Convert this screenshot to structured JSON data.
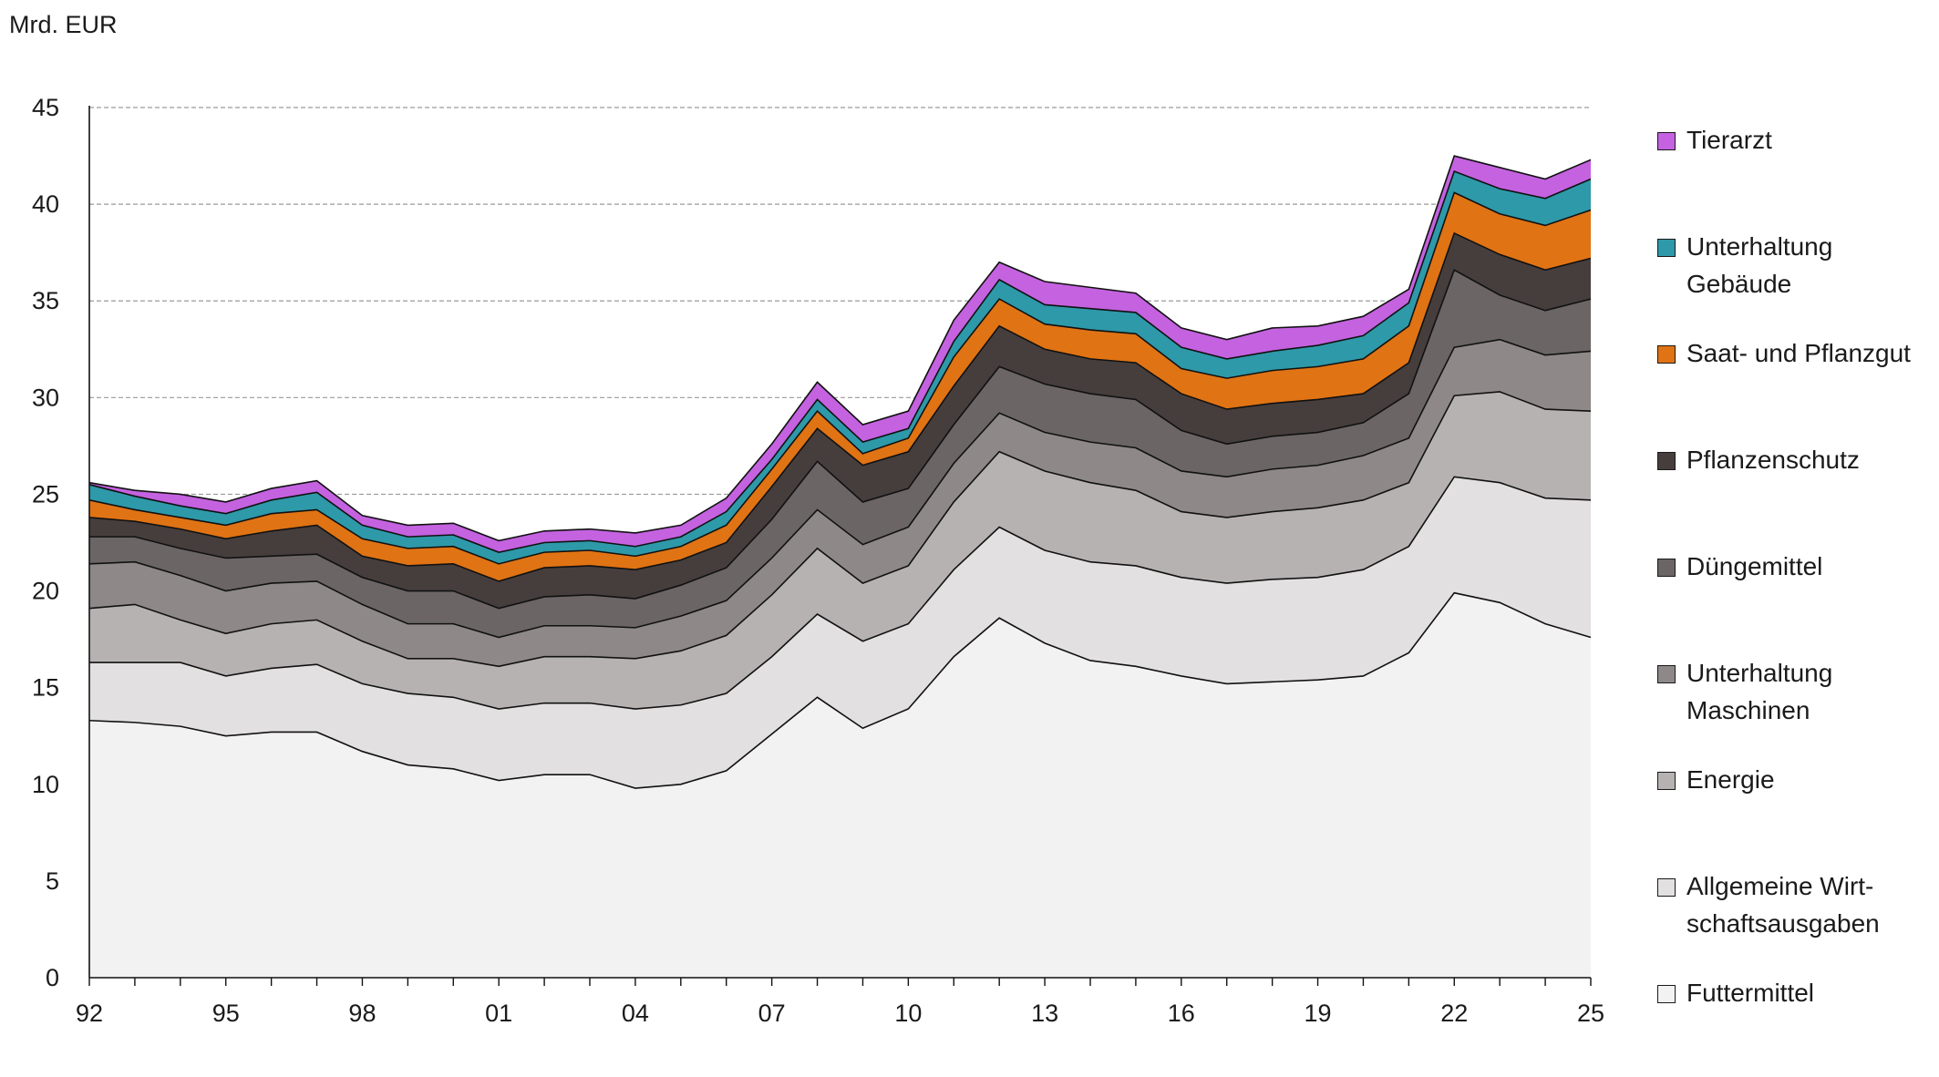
{
  "unit_label": "Mrd. EUR",
  "chart_data": {
    "type": "area",
    "stacked": true,
    "ylabel": "Mrd. EUR",
    "ylim": [
      0,
      45
    ],
    "yticks": [
      0,
      5,
      10,
      15,
      20,
      25,
      30,
      35,
      40,
      45
    ],
    "xticks": [
      "92",
      "95",
      "98",
      "01",
      "04",
      "07",
      "10",
      "13",
      "16",
      "19",
      "22",
      "25"
    ],
    "grid": "horizontal dashed",
    "legend_position": "right",
    "x": [
      1992,
      1993,
      1994,
      1995,
      1996,
      1997,
      1998,
      1999,
      2000,
      2001,
      2002,
      2003,
      2004,
      2005,
      2006,
      2007,
      2008,
      2009,
      2010,
      2011,
      2012,
      2013,
      2014,
      2015,
      2016,
      2017,
      2018,
      2019,
      2020,
      2021,
      2022,
      2023,
      2024,
      2025
    ],
    "series": [
      {
        "name": "Futtermittel",
        "color": "#f2f2f2",
        "values": [
          13.3,
          13.2,
          13.0,
          12.5,
          12.7,
          12.7,
          11.7,
          11.0,
          10.8,
          10.2,
          10.5,
          10.5,
          9.8,
          10.0,
          10.7,
          12.6,
          14.5,
          12.9,
          13.9,
          16.6,
          18.6,
          17.3,
          16.4,
          16.1,
          15.6,
          15.2,
          15.3,
          15.4,
          15.6,
          16.8,
          19.9,
          19.4,
          18.3,
          17.6
        ]
      },
      {
        "name": "Allgemeine Wirt-\nschaftsausgaben",
        "color": "#e2e0e0",
        "values": [
          3.0,
          3.1,
          3.3,
          3.1,
          3.3,
          3.5,
          3.5,
          3.7,
          3.7,
          3.7,
          3.7,
          3.7,
          4.1,
          4.1,
          4.0,
          4.0,
          4.3,
          4.5,
          4.4,
          4.5,
          4.7,
          4.8,
          5.1,
          5.2,
          5.1,
          5.2,
          5.3,
          5.3,
          5.5,
          5.5,
          6.0,
          6.2,
          6.5,
          7.1
        ]
      },
      {
        "name": "Energie",
        "color": "#b7b2b2",
        "values": [
          2.8,
          3.0,
          2.2,
          2.2,
          2.3,
          2.3,
          2.2,
          1.8,
          2.0,
          2.2,
          2.4,
          2.4,
          2.6,
          2.8,
          3.0,
          3.2,
          3.4,
          3.0,
          3.0,
          3.5,
          3.9,
          4.1,
          4.1,
          3.9,
          3.4,
          3.4,
          3.5,
          3.6,
          3.6,
          3.3,
          4.2,
          4.7,
          4.6,
          4.6
        ]
      },
      {
        "name": "Unterhaltung\nMaschinen",
        "color": "#8e8888",
        "values": [
          2.3,
          2.2,
          2.3,
          2.2,
          2.1,
          2.0,
          1.9,
          1.8,
          1.8,
          1.5,
          1.6,
          1.6,
          1.6,
          1.8,
          1.8,
          1.9,
          2.0,
          2.0,
          2.0,
          2.0,
          2.0,
          2.0,
          2.1,
          2.2,
          2.1,
          2.1,
          2.2,
          2.2,
          2.3,
          2.3,
          2.5,
          2.7,
          2.8,
          3.1
        ]
      },
      {
        "name": "Düngemittel",
        "color": "#6b6565",
        "values": [
          1.4,
          1.3,
          1.4,
          1.7,
          1.4,
          1.4,
          1.4,
          1.7,
          1.7,
          1.5,
          1.5,
          1.6,
          1.5,
          1.6,
          1.7,
          2.0,
          2.5,
          2.2,
          2.0,
          2.0,
          2.4,
          2.5,
          2.5,
          2.5,
          2.1,
          1.7,
          1.7,
          1.7,
          1.7,
          2.3,
          4.0,
          2.3,
          2.3,
          2.7
        ]
      },
      {
        "name": "Pflanzenschutz",
        "color": "#463e3d",
        "values": [
          1.0,
          0.8,
          1.0,
          1.0,
          1.3,
          1.5,
          1.1,
          1.3,
          1.4,
          1.4,
          1.5,
          1.5,
          1.5,
          1.3,
          1.3,
          1.7,
          1.7,
          1.9,
          1.9,
          2.0,
          2.1,
          1.8,
          1.8,
          1.9,
          1.9,
          1.8,
          1.7,
          1.7,
          1.5,
          1.6,
          1.9,
          2.1,
          2.1,
          2.1
        ]
      },
      {
        "name": "Saat- und Pflanzgut",
        "color": "#e07314",
        "values": [
          0.9,
          0.6,
          0.6,
          0.7,
          0.9,
          0.8,
          0.9,
          0.9,
          0.9,
          0.9,
          0.8,
          0.8,
          0.7,
          0.7,
          0.9,
          0.9,
          0.9,
          0.6,
          0.7,
          1.5,
          1.4,
          1.3,
          1.5,
          1.5,
          1.3,
          1.6,
          1.7,
          1.7,
          1.8,
          1.9,
          2.1,
          2.1,
          2.3,
          2.5
        ]
      },
      {
        "name": "Unterhaltung\nGebäude",
        "color": "#2e99a8",
        "values": [
          0.8,
          0.7,
          0.6,
          0.6,
          0.7,
          0.9,
          0.7,
          0.6,
          0.6,
          0.6,
          0.5,
          0.5,
          0.5,
          0.5,
          0.7,
          0.5,
          0.6,
          0.6,
          0.5,
          0.8,
          1.0,
          1.0,
          1.1,
          1.1,
          1.1,
          1.0,
          1.0,
          1.1,
          1.2,
          1.2,
          1.1,
          1.3,
          1.4,
          1.6
        ]
      },
      {
        "name": "Tierarzt",
        "color": "#c462e0",
        "values": [
          0.1,
          0.3,
          0.6,
          0.6,
          0.6,
          0.6,
          0.5,
          0.6,
          0.6,
          0.6,
          0.6,
          0.6,
          0.7,
          0.6,
          0.7,
          0.8,
          0.9,
          0.9,
          0.9,
          1.1,
          0.9,
          1.2,
          1.1,
          1.0,
          1.0,
          1.0,
          1.2,
          1.0,
          1.0,
          0.7,
          0.8,
          1.1,
          1.0,
          1.0
        ]
      }
    ]
  }
}
